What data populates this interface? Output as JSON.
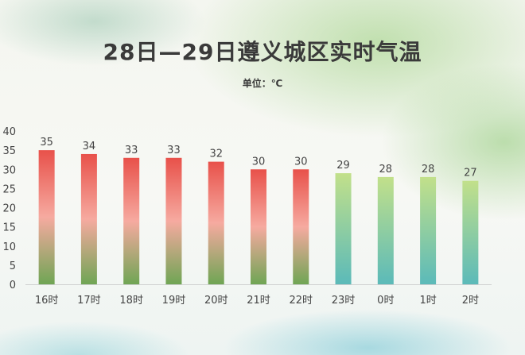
{
  "title": "28日—29日遵义城区实时气温",
  "unit_label": "单位：℃",
  "chart_data": {
    "type": "bar",
    "title": "28日—29日遵义城区实时气温",
    "subtitle": "单位：℃",
    "categories": [
      "16时",
      "17时",
      "18时",
      "19时",
      "20时",
      "21时",
      "22时",
      "23时",
      "0时",
      "1时",
      "2时"
    ],
    "values": [
      35,
      34,
      33,
      33,
      32,
      30,
      30,
      29,
      28,
      28,
      27
    ],
    "ylim": [
      0,
      40
    ],
    "yticks": [
      0,
      5,
      10,
      15,
      20,
      25,
      30,
      35,
      40
    ],
    "xlabel": "",
    "ylabel": "",
    "grid": false,
    "colors": {
      "warm_top": "#e8514a",
      "warm_mid": "#f6aaa0",
      "warm_bottom": "#6fa554",
      "cool_top": "#c2e08a",
      "cool_bottom": "#5bbab9"
    },
    "warm_count": 7
  }
}
